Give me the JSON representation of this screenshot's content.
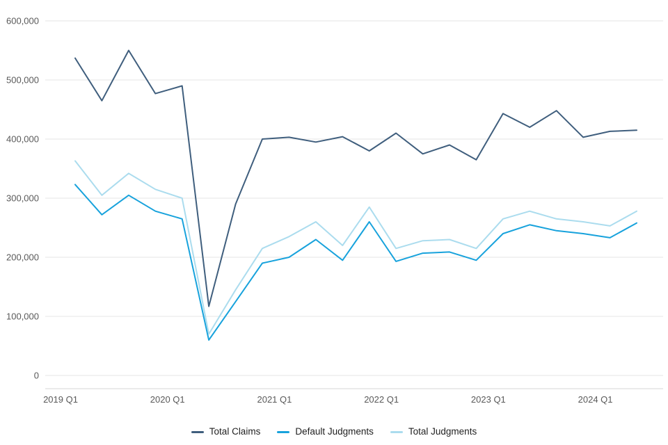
{
  "chart_data": {
    "type": "line",
    "title": "",
    "xlabel": "",
    "ylabel": "",
    "ylim": [
      0,
      600000
    ],
    "grid": "horizontal",
    "legend_position": "bottom",
    "x": [
      "2019 Q1",
      "2019 Q2",
      "2019 Q3",
      "2019 Q4",
      "2020 Q1",
      "2020 Q2",
      "2020 Q3",
      "2020 Q4",
      "2021 Q1",
      "2021 Q2",
      "2021 Q3",
      "2021 Q4",
      "2022 Q1",
      "2022 Q2",
      "2022 Q3",
      "2022 Q4",
      "2023 Q1",
      "2023 Q2",
      "2023 Q3",
      "2023 Q4",
      "2024 Q1",
      "2024 Q2"
    ],
    "x_ticks": [
      {
        "label": "2019 Q1",
        "index": 0
      },
      {
        "label": "2020 Q1",
        "index": 4
      },
      {
        "label": "2021 Q1",
        "index": 8
      },
      {
        "label": "2022 Q1",
        "index": 12
      },
      {
        "label": "2023 Q1",
        "index": 16
      },
      {
        "label": "2024 Q1",
        "index": 20
      }
    ],
    "yticks": [
      {
        "label": "0",
        "value": 0
      },
      {
        "label": "100,000",
        "value": 100000
      },
      {
        "label": "200,000",
        "value": 200000
      },
      {
        "label": "300,000",
        "value": 300000
      },
      {
        "label": "400,000",
        "value": 400000
      },
      {
        "label": "500,000",
        "value": 500000
      },
      {
        "label": "600,000",
        "value": 600000
      }
    ],
    "series": [
      {
        "name": "Total Claims",
        "color": "#3f5e7d",
        "values": [
          537000,
          465000,
          550000,
          477000,
          490000,
          117000,
          290000,
          400000,
          403000,
          395000,
          404000,
          380000,
          410000,
          375000,
          390000,
          365000,
          443000,
          420000,
          448000,
          403000,
          413000,
          415000
        ]
      },
      {
        "name": "Default Judgments",
        "color": "#17a2dc",
        "values": [
          323000,
          272000,
          305000,
          278000,
          265000,
          60000,
          125000,
          190000,
          200000,
          230000,
          195000,
          260000,
          193000,
          207000,
          209000,
          195000,
          240000,
          255000,
          245000,
          240000,
          233000,
          258000
        ]
      },
      {
        "name": "Total Judgments",
        "color": "#abdcee",
        "values": [
          363000,
          305000,
          342000,
          315000,
          300000,
          70000,
          145000,
          215000,
          235000,
          260000,
          220000,
          285000,
          215000,
          228000,
          230000,
          215000,
          265000,
          278000,
          265000,
          260000,
          253000,
          278000
        ]
      }
    ]
  }
}
